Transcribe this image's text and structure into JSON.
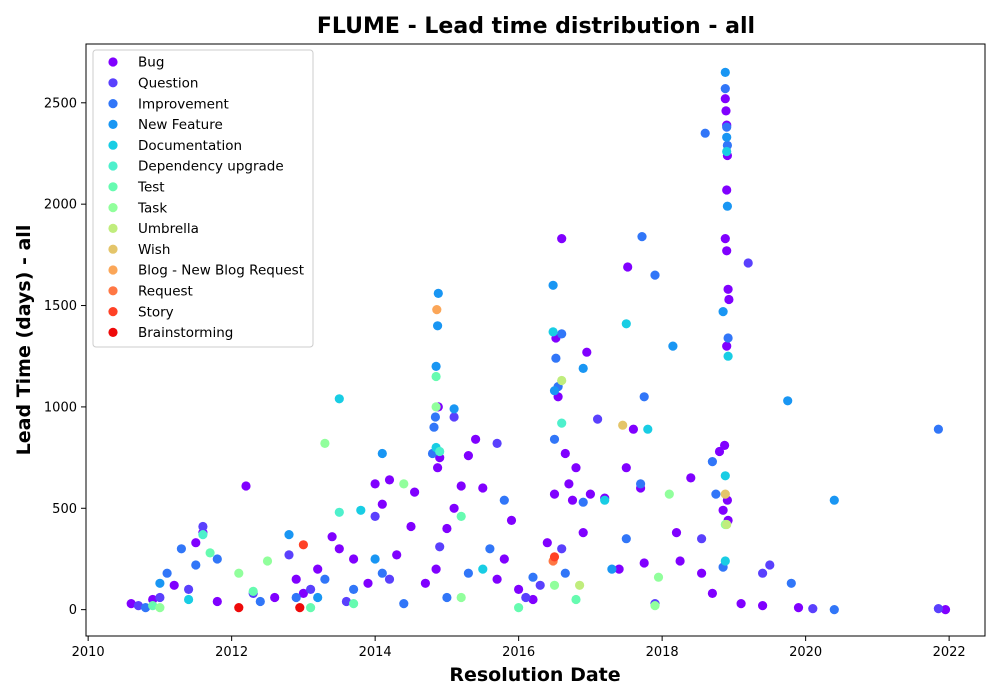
{
  "chart_data": {
    "type": "scatter",
    "title": "FLUME - Lead time distribution - all",
    "xlabel": "Resolution Date",
    "ylabel": "Lead Time (days) - all",
    "xlim": [
      2009.97,
      2022.5
    ],
    "ylim": [
      -130,
      2790
    ],
    "xticks": [
      2010,
      2012,
      2014,
      2016,
      2018,
      2020,
      2022
    ],
    "yticks": [
      0,
      500,
      1000,
      1500,
      2000,
      2500
    ],
    "legend_position": "upper-left",
    "grid": false,
    "series": [
      {
        "name": "Bug",
        "color": "#8000ff",
        "points": [
          [
            2010.6,
            30
          ],
          [
            2010.9,
            50
          ],
          [
            2011.2,
            120
          ],
          [
            2011.5,
            330
          ],
          [
            2011.6,
            380
          ],
          [
            2011.8,
            40
          ],
          [
            2012.2,
            610
          ],
          [
            2012.6,
            60
          ],
          [
            2012.9,
            150
          ],
          [
            2013.0,
            80
          ],
          [
            2013.2,
            200
          ],
          [
            2013.4,
            360
          ],
          [
            2013.5,
            300
          ],
          [
            2013.7,
            250
          ],
          [
            2013.9,
            130
          ],
          [
            2014.0,
            620
          ],
          [
            2014.1,
            520
          ],
          [
            2014.2,
            640
          ],
          [
            2014.3,
            270
          ],
          [
            2014.5,
            410
          ],
          [
            2014.55,
            580
          ],
          [
            2014.7,
            130
          ],
          [
            2014.85,
            200
          ],
          [
            2014.87,
            700
          ],
          [
            2014.88,
            1000
          ],
          [
            2014.9,
            750
          ],
          [
            2015.0,
            400
          ],
          [
            2015.1,
            500
          ],
          [
            2015.2,
            610
          ],
          [
            2015.3,
            760
          ],
          [
            2015.4,
            840
          ],
          [
            2015.5,
            600
          ],
          [
            2015.7,
            150
          ],
          [
            2015.8,
            250
          ],
          [
            2015.9,
            440
          ],
          [
            2016.0,
            100
          ],
          [
            2016.2,
            50
          ],
          [
            2016.4,
            330
          ],
          [
            2016.5,
            570
          ],
          [
            2016.52,
            1340
          ],
          [
            2016.55,
            1050
          ],
          [
            2016.6,
            1830
          ],
          [
            2016.65,
            770
          ],
          [
            2016.7,
            620
          ],
          [
            2016.75,
            540
          ],
          [
            2016.8,
            700
          ],
          [
            2016.9,
            380
          ],
          [
            2016.95,
            1270
          ],
          [
            2017.0,
            570
          ],
          [
            2017.2,
            550
          ],
          [
            2017.4,
            200
          ],
          [
            2017.5,
            700
          ],
          [
            2017.52,
            1690
          ],
          [
            2017.6,
            890
          ],
          [
            2017.7,
            600
          ],
          [
            2017.75,
            230
          ],
          [
            2018.2,
            380
          ],
          [
            2018.25,
            240
          ],
          [
            2018.4,
            650
          ],
          [
            2018.55,
            180
          ],
          [
            2018.7,
            80
          ],
          [
            2018.8,
            780
          ],
          [
            2018.85,
            490
          ],
          [
            2018.87,
            810
          ],
          [
            2018.88,
            2520
          ],
          [
            2018.89,
            2460
          ],
          [
            2018.9,
            2390
          ],
          [
            2018.91,
            2240
          ],
          [
            2018.9,
            2070
          ],
          [
            2018.88,
            1830
          ],
          [
            2018.9,
            1770
          ],
          [
            2018.92,
            1580
          ],
          [
            2018.93,
            1530
          ],
          [
            2018.9,
            1300
          ],
          [
            2018.91,
            540
          ],
          [
            2018.92,
            440
          ],
          [
            2019.1,
            30
          ],
          [
            2019.4,
            20
          ],
          [
            2019.9,
            10
          ],
          [
            2021.95,
            0
          ]
        ]
      },
      {
        "name": "Question",
        "color": "#5a40fd",
        "points": [
          [
            2010.7,
            20
          ],
          [
            2011.0,
            60
          ],
          [
            2011.4,
            100
          ],
          [
            2011.6,
            410
          ],
          [
            2012.3,
            80
          ],
          [
            2012.8,
            270
          ],
          [
            2013.1,
            100
          ],
          [
            2013.6,
            40
          ],
          [
            2014.0,
            460
          ],
          [
            2014.2,
            150
          ],
          [
            2014.9,
            310
          ],
          [
            2015.1,
            950
          ],
          [
            2015.7,
            820
          ],
          [
            2016.1,
            60
          ],
          [
            2016.3,
            120
          ],
          [
            2016.6,
            300
          ],
          [
            2017.1,
            940
          ],
          [
            2017.9,
            30
          ],
          [
            2018.55,
            350
          ],
          [
            2019.2,
            1710
          ],
          [
            2019.4,
            180
          ],
          [
            2019.5,
            220
          ],
          [
            2020.1,
            5
          ],
          [
            2021.85,
            5
          ]
        ]
      },
      {
        "name": "Improvement",
        "color": "#3176f8",
        "points": [
          [
            2010.8,
            10
          ],
          [
            2011.1,
            180
          ],
          [
            2011.3,
            300
          ],
          [
            2011.5,
            220
          ],
          [
            2011.8,
            250
          ],
          [
            2012.4,
            40
          ],
          [
            2012.9,
            60
          ],
          [
            2013.3,
            150
          ],
          [
            2013.7,
            100
          ],
          [
            2014.1,
            180
          ],
          [
            2014.4,
            30
          ],
          [
            2014.8,
            770
          ],
          [
            2014.82,
            900
          ],
          [
            2014.84,
            950
          ],
          [
            2015.0,
            60
          ],
          [
            2015.3,
            180
          ],
          [
            2015.6,
            300
          ],
          [
            2015.8,
            540
          ],
          [
            2016.2,
            160
          ],
          [
            2016.5,
            840
          ],
          [
            2016.52,
            1240
          ],
          [
            2016.55,
            1100
          ],
          [
            2016.6,
            1360
          ],
          [
            2016.65,
            180
          ],
          [
            2016.9,
            530
          ],
          [
            2017.5,
            350
          ],
          [
            2017.7,
            620
          ],
          [
            2017.72,
            1840
          ],
          [
            2017.75,
            1050
          ],
          [
            2017.9,
            1650
          ],
          [
            2018.6,
            2350
          ],
          [
            2018.7,
            730
          ],
          [
            2018.75,
            570
          ],
          [
            2018.85,
            210
          ],
          [
            2018.88,
            2570
          ],
          [
            2018.9,
            2380
          ],
          [
            2018.91,
            2290
          ],
          [
            2018.92,
            1340
          ],
          [
            2019.8,
            130
          ],
          [
            2020.4,
            0
          ],
          [
            2021.85,
            890
          ]
        ]
      },
      {
        "name": "New Feature",
        "color": "#1996f3",
        "points": [
          [
            2011.0,
            130
          ],
          [
            2012.8,
            370
          ],
          [
            2013.2,
            60
          ],
          [
            2014.0,
            250
          ],
          [
            2014.1,
            770
          ],
          [
            2014.85,
            1200
          ],
          [
            2014.87,
            1400
          ],
          [
            2014.88,
            1560
          ],
          [
            2015.1,
            990
          ],
          [
            2016.48,
            1600
          ],
          [
            2016.5,
            1080
          ],
          [
            2016.9,
            1190
          ],
          [
            2017.3,
            200
          ],
          [
            2018.15,
            1300
          ],
          [
            2018.85,
            1470
          ],
          [
            2018.88,
            2650
          ],
          [
            2018.9,
            2330
          ],
          [
            2018.91,
            1990
          ],
          [
            2019.75,
            1030
          ],
          [
            2020.4,
            540
          ]
        ]
      },
      {
        "name": "Documentation",
        "color": "#18cde4",
        "points": [
          [
            2011.4,
            50
          ],
          [
            2013.5,
            1040
          ],
          [
            2013.8,
            490
          ],
          [
            2014.85,
            800
          ],
          [
            2015.5,
            200
          ],
          [
            2016.48,
            1370
          ],
          [
            2017.2,
            540
          ],
          [
            2017.5,
            1410
          ],
          [
            2017.8,
            890
          ],
          [
            2018.88,
            660
          ],
          [
            2018.92,
            1250
          ],
          [
            2018.88,
            240
          ],
          [
            2018.9,
            2260
          ]
        ]
      },
      {
        "name": "Dependency upgrade",
        "color": "#4ef0cc",
        "points": [
          [
            2011.6,
            370
          ],
          [
            2013.5,
            480
          ],
          [
            2014.9,
            780
          ],
          [
            2016.6,
            920
          ]
        ]
      },
      {
        "name": "Test",
        "color": "#66fbb0",
        "points": [
          [
            2010.9,
            20
          ],
          [
            2011.7,
            280
          ],
          [
            2012.3,
            90
          ],
          [
            2013.1,
            10
          ],
          [
            2013.7,
            30
          ],
          [
            2014.85,
            1150
          ],
          [
            2015.2,
            460
          ],
          [
            2016.0,
            10
          ],
          [
            2016.8,
            50
          ]
        ]
      },
      {
        "name": "Task",
        "color": "#91ff9c",
        "points": [
          [
            2011.0,
            10
          ],
          [
            2012.1,
            180
          ],
          [
            2012.5,
            240
          ],
          [
            2013.3,
            820
          ],
          [
            2014.4,
            620
          ],
          [
            2014.85,
            1000
          ],
          [
            2015.2,
            60
          ],
          [
            2016.5,
            120
          ],
          [
            2017.9,
            20
          ],
          [
            2018.1,
            570
          ],
          [
            2017.95,
            160
          ],
          [
            2018.88,
            420
          ]
        ]
      },
      {
        "name": "Umbrella",
        "color": "#c0ed7d",
        "points": [
          [
            2016.6,
            1130
          ],
          [
            2016.85,
            120
          ],
          [
            2018.9,
            420
          ]
        ]
      },
      {
        "name": "Wish",
        "color": "#e4c56a",
        "points": [
          [
            2017.45,
            910
          ],
          [
            2018.88,
            570
          ]
        ]
      },
      {
        "name": "Blog - New Blog Request",
        "color": "#fba658",
        "points": [
          [
            2014.86,
            1480
          ]
        ]
      },
      {
        "name": "Request",
        "color": "#ff7744",
        "points": [
          [
            2016.48,
            240
          ]
        ]
      },
      {
        "name": "Story",
        "color": "#ff4126",
        "points": [
          [
            2016.5,
            260
          ],
          [
            2013.0,
            320
          ]
        ]
      },
      {
        "name": "Brainstorming",
        "color": "#ee0a0a",
        "points": [
          [
            2012.1,
            10
          ],
          [
            2012.95,
            10
          ]
        ]
      }
    ]
  }
}
